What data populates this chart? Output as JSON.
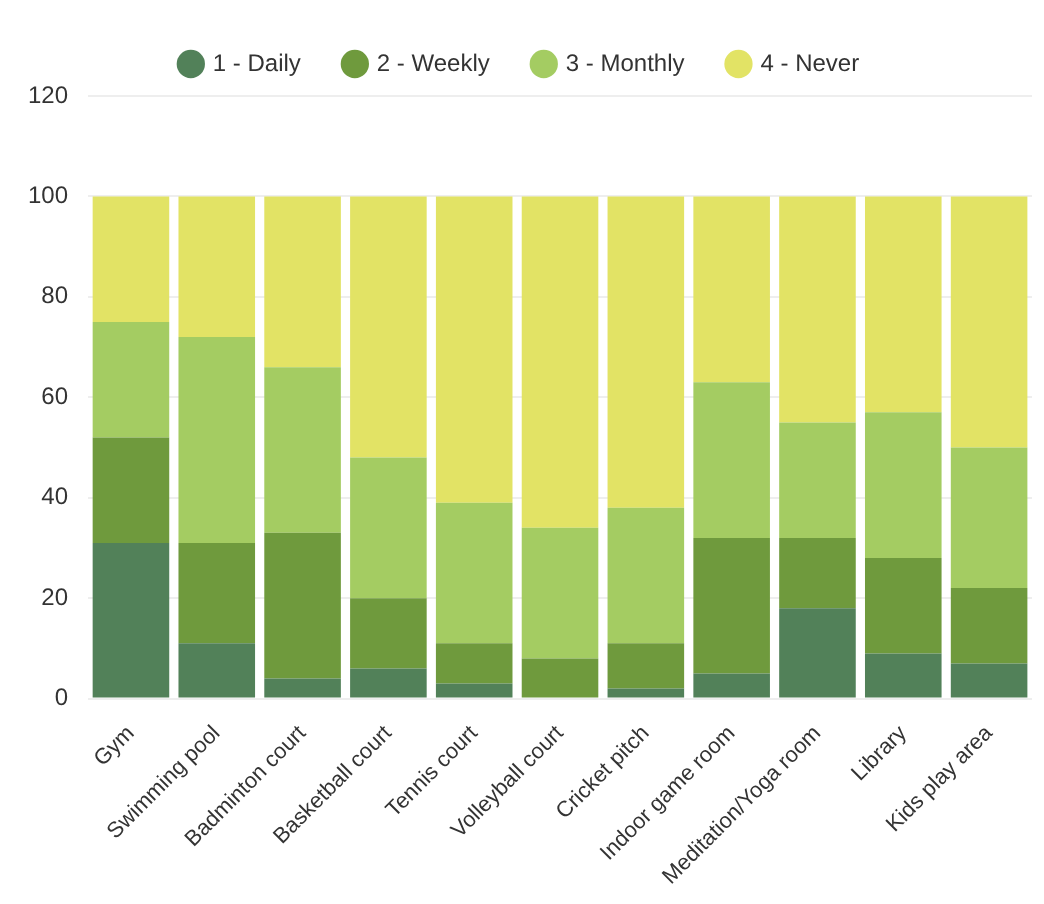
{
  "chart_data": {
    "type": "bar",
    "stacked": true,
    "categories": [
      "Gym",
      "Swimming pool",
      "Badminton court",
      "Basketball court",
      "Tennis court",
      "Volleyball court",
      "Cricket pitch",
      "Indoor game room",
      "Meditation/Yoga room",
      "Library",
      "Kids play area"
    ],
    "series": [
      {
        "name": "1 - Daily",
        "color": "#528159",
        "values": [
          31,
          11,
          4,
          6,
          3,
          0,
          2,
          5,
          18,
          9,
          7
        ]
      },
      {
        "name": "2 - Weekly",
        "color": "#6f9a3d",
        "values": [
          21,
          20,
          29,
          14,
          8,
          8,
          9,
          27,
          14,
          19,
          15
        ]
      },
      {
        "name": "3 - Monthly",
        "color": "#a4cc62",
        "values": [
          23,
          41,
          33,
          28,
          28,
          26,
          27,
          31,
          23,
          29,
          28
        ]
      },
      {
        "name": "4 - Never",
        "color": "#e2e365",
        "values": [
          25,
          28,
          34,
          52,
          61,
          66,
          62,
          37,
          45,
          43,
          50
        ]
      }
    ],
    "ylim": [
      0,
      120
    ],
    "yticks": [
      0,
      20,
      40,
      60,
      80,
      100,
      120
    ],
    "grid": "y",
    "legend": "top"
  }
}
